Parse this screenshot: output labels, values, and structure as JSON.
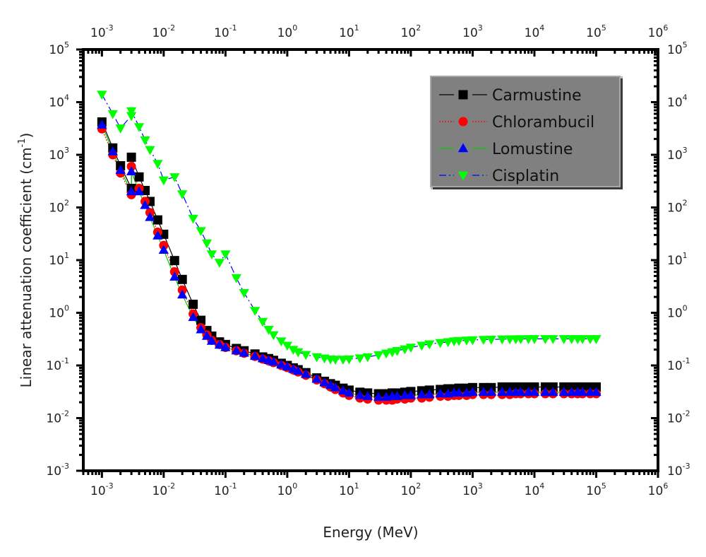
{
  "chart_data": {
    "type": "scatter",
    "title": "",
    "xlabel": "Energy (MeV)",
    "ylabel": "Linear attenuation coefficient (cm",
    "ylabel_sup": "-1",
    "ylabel_close": ")",
    "xscale": "log",
    "yscale": "log",
    "xlim": [
      0.0005,
      1000000
    ],
    "ylim": [
      0.001,
      100000
    ],
    "x_ticks": [
      {
        "base": "10",
        "exp": "-3",
        "value": 0.001
      },
      {
        "base": "10",
        "exp": "-2",
        "value": 0.01
      },
      {
        "base": "10",
        "exp": "-1",
        "value": 0.1
      },
      {
        "base": "10",
        "exp": "0",
        "value": 1
      },
      {
        "base": "10",
        "exp": "1",
        "value": 10
      },
      {
        "base": "10",
        "exp": "2",
        "value": 100
      },
      {
        "base": "10",
        "exp": "3",
        "value": 1000
      },
      {
        "base": "10",
        "exp": "4",
        "value": 10000
      },
      {
        "base": "10",
        "exp": "5",
        "value": 100000
      },
      {
        "base": "10",
        "exp": "6",
        "value": 1000000
      }
    ],
    "y_ticks": [
      {
        "base": "10",
        "exp": "-3",
        "value": 0.001
      },
      {
        "base": "10",
        "exp": "-2",
        "value": 0.01
      },
      {
        "base": "10",
        "exp": "-1",
        "value": 0.1
      },
      {
        "base": "10",
        "exp": "0",
        "value": 1
      },
      {
        "base": "10",
        "exp": "1",
        "value": 10
      },
      {
        "base": "10",
        "exp": "2",
        "value": 100
      },
      {
        "base": "10",
        "exp": "3",
        "value": 1000
      },
      {
        "base": "10",
        "exp": "4",
        "value": 10000
      },
      {
        "base": "10",
        "exp": "5",
        "value": 100000
      }
    ],
    "mirror_axes": true,
    "grid": false,
    "legend_position": "top-right",
    "legend_background": "#808080",
    "x": [
      0.001,
      0.0015,
      0.002,
      0.003,
      0.003,
      0.004,
      0.005,
      0.006,
      0.008,
      0.01,
      0.015,
      0.02,
      0.03,
      0.04,
      0.05,
      0.06,
      0.08,
      0.1,
      0.15,
      0.2,
      0.3,
      0.4,
      0.5,
      0.6,
      0.8,
      1,
      1.25,
      1.5,
      2,
      3,
      4,
      5,
      6,
      8,
      10,
      15,
      20,
      30,
      40,
      50,
      60,
      80,
      100,
      150,
      200,
      300,
      400,
      500,
      600,
      800,
      1000,
      1500,
      2000,
      3000,
      4000,
      5000,
      6000,
      8000,
      10000,
      15000,
      20000,
      30000,
      40000,
      50000,
      60000,
      80000,
      100000
    ],
    "series": [
      {
        "name": "Carmustine",
        "marker": "square",
        "marker_color": "#000000",
        "line_color": "#000000",
        "line_style": "solid",
        "values": [
          4200,
          1350,
          620,
          230,
          900,
          380,
          210,
          130,
          58,
          31,
          9.8,
          4.3,
          1.45,
          0.72,
          0.46,
          0.36,
          0.28,
          0.25,
          0.21,
          0.19,
          0.165,
          0.145,
          0.135,
          0.125,
          0.11,
          0.1,
          0.09,
          0.083,
          0.073,
          0.058,
          0.05,
          0.045,
          0.042,
          0.037,
          0.034,
          0.031,
          0.03,
          0.029,
          0.029,
          0.03,
          0.03,
          0.031,
          0.032,
          0.033,
          0.034,
          0.035,
          0.036,
          0.036,
          0.037,
          0.037,
          0.038,
          0.038,
          0.038,
          0.039,
          0.039,
          0.039,
          0.039,
          0.039,
          0.039,
          0.039,
          0.039,
          0.039,
          0.039,
          0.039,
          0.039,
          0.039,
          0.039
        ]
      },
      {
        "name": "Chlorambucil",
        "marker": "circle",
        "marker_color": "#ff0000",
        "line_color": "#ff0000",
        "line_style": "dotted",
        "values": [
          3100,
          1000,
          450,
          175,
          600,
          230,
          130,
          80,
          34,
          19,
          6,
          2.7,
          0.95,
          0.52,
          0.38,
          0.3,
          0.25,
          0.22,
          0.19,
          0.17,
          0.148,
          0.132,
          0.122,
          0.113,
          0.1,
          0.091,
          0.082,
          0.075,
          0.065,
          0.053,
          0.045,
          0.039,
          0.035,
          0.03,
          0.027,
          0.024,
          0.023,
          0.022,
          0.022,
          0.022,
          0.023,
          0.023,
          0.024,
          0.024,
          0.025,
          0.026,
          0.026,
          0.027,
          0.027,
          0.027,
          0.028,
          0.028,
          0.028,
          0.028,
          0.028,
          0.029,
          0.029,
          0.029,
          0.029,
          0.029,
          0.029,
          0.029,
          0.029,
          0.029,
          0.029,
          0.029,
          0.029
        ]
      },
      {
        "name": "Lomustine",
        "marker": "triangle-up",
        "marker_color": "#0000ff",
        "line_color": "#00cc00",
        "line_style": "solid",
        "values": [
          3700,
          1150,
          510,
          200,
          480,
          200,
          110,
          65,
          29,
          15.5,
          4.8,
          2.2,
          0.82,
          0.48,
          0.36,
          0.29,
          0.245,
          0.22,
          0.19,
          0.172,
          0.15,
          0.135,
          0.125,
          0.116,
          0.103,
          0.094,
          0.085,
          0.078,
          0.068,
          0.055,
          0.047,
          0.042,
          0.038,
          0.033,
          0.03,
          0.027,
          0.026,
          0.025,
          0.025,
          0.026,
          0.026,
          0.027,
          0.027,
          0.028,
          0.028,
          0.029,
          0.029,
          0.03,
          0.03,
          0.03,
          0.031,
          0.031,
          0.031,
          0.031,
          0.031,
          0.031,
          0.031,
          0.031,
          0.031,
          0.031,
          0.031,
          0.031,
          0.031,
          0.031,
          0.031,
          0.031,
          0.031
        ]
      },
      {
        "name": "Cisplatin",
        "marker": "triangle-down",
        "marker_color": "#00ff00",
        "line_color": "#0000ff",
        "line_style": "dashdot",
        "values": [
          14000,
          6000,
          3200,
          5500,
          6800,
          3400,
          1900,
          1250,
          680,
          330,
          380,
          180,
          62,
          36,
          21,
          13,
          9,
          13,
          4.6,
          2.4,
          1.1,
          0.68,
          0.48,
          0.38,
          0.29,
          0.24,
          0.2,
          0.18,
          0.16,
          0.145,
          0.137,
          0.132,
          0.13,
          0.13,
          0.132,
          0.138,
          0.145,
          0.158,
          0.17,
          0.18,
          0.19,
          0.205,
          0.22,
          0.24,
          0.255,
          0.27,
          0.28,
          0.29,
          0.295,
          0.3,
          0.305,
          0.31,
          0.312,
          0.315,
          0.317,
          0.318,
          0.319,
          0.32,
          0.32,
          0.32,
          0.32,
          0.32,
          0.32,
          0.32,
          0.32,
          0.32,
          0.32
        ]
      }
    ]
  }
}
